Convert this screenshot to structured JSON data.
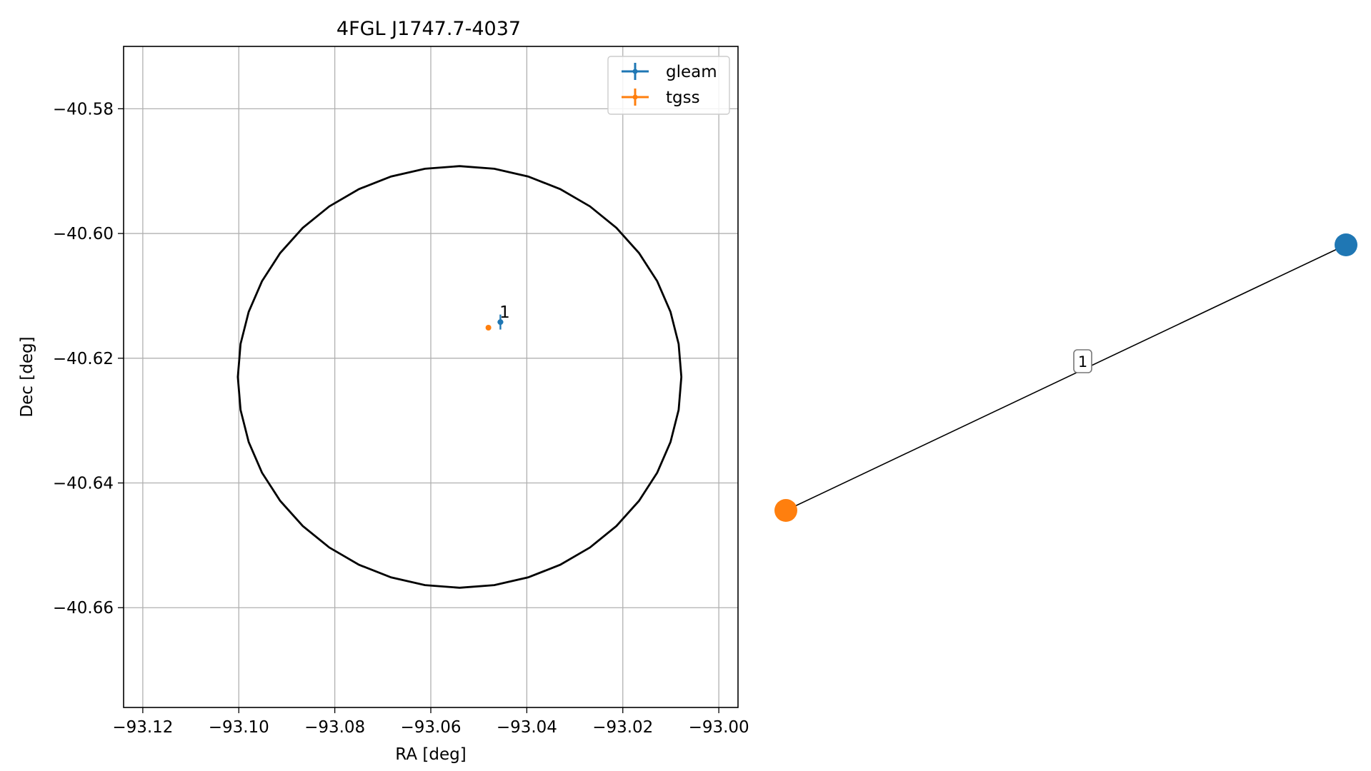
{
  "chart_data": [
    {
      "type": "scatter",
      "title": "4FGL J1747.7-4037",
      "xlabel": "RA [deg]",
      "ylabel": "Dec [deg]",
      "xlim": [
        -93.124,
        -92.996
      ],
      "ylim": [
        -40.676,
        -40.57
      ],
      "xticks": [
        -93.12,
        -93.1,
        -93.08,
        -93.06,
        -93.04,
        -93.02,
        -93.0
      ],
      "xtick_labels": [
        "−93.12",
        "−93.10",
        "−93.08",
        "−93.06",
        "−93.04",
        "−93.02",
        "−93.00"
      ],
      "yticks": [
        -40.58,
        -40.6,
        -40.62,
        -40.64,
        -40.66
      ],
      "ytick_labels": [
        "−40.58",
        "−40.60",
        "−40.62",
        "−40.64",
        "−40.66"
      ],
      "grid": true,
      "legend_placement": "top-right",
      "series": [
        {
          "name": "gleam",
          "color": "#1f77b4",
          "points": [
            {
              "x": -93.0455,
              "y": -40.6142,
              "xerr": 0.0006,
              "yerr": 0.0012
            }
          ]
        },
        {
          "name": "tgss",
          "color": "#ff7f0e",
          "points": [
            {
              "x": -93.048,
              "y": -40.6151,
              "xerr": 0.0004,
              "yerr": 0.0004
            }
          ]
        }
      ],
      "annotations": [
        {
          "text": "1",
          "x": -93.0457,
          "y": -40.6135
        }
      ],
      "circle": {
        "center": [
          -93.054,
          -40.623
        ],
        "radius_x": 0.0462,
        "radius_y": 0.0338
      }
    },
    {
      "type": "network",
      "nodes": [
        {
          "id": "gleam",
          "color": "#1f77b4"
        },
        {
          "id": "tgss",
          "color": "#ff7f0e"
        }
      ],
      "edges": [
        {
          "source": "tgss",
          "target": "gleam",
          "label": "1"
        }
      ]
    }
  ]
}
